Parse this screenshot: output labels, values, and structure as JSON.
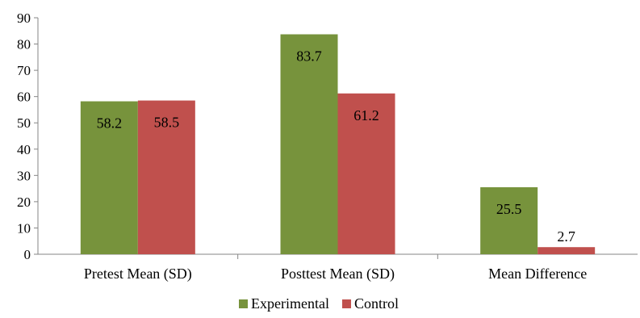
{
  "chart_data": {
    "type": "bar",
    "categories": [
      "Pretest Mean (SD)",
      "Posttest Mean (SD)",
      "Mean Difference"
    ],
    "series": [
      {
        "name": "Experimental",
        "color": "#77933c",
        "values": [
          58.2,
          83.7,
          25.5
        ]
      },
      {
        "name": "Control",
        "color": "#c0504d",
        "values": [
          58.5,
          61.2,
          2.7
        ]
      }
    ],
    "ylim": [
      0,
      90
    ],
    "yticks": [
      0,
      10,
      20,
      30,
      40,
      50,
      60,
      70,
      80,
      90
    ],
    "data_labels": true,
    "grid": false,
    "legend": "bottom"
  }
}
